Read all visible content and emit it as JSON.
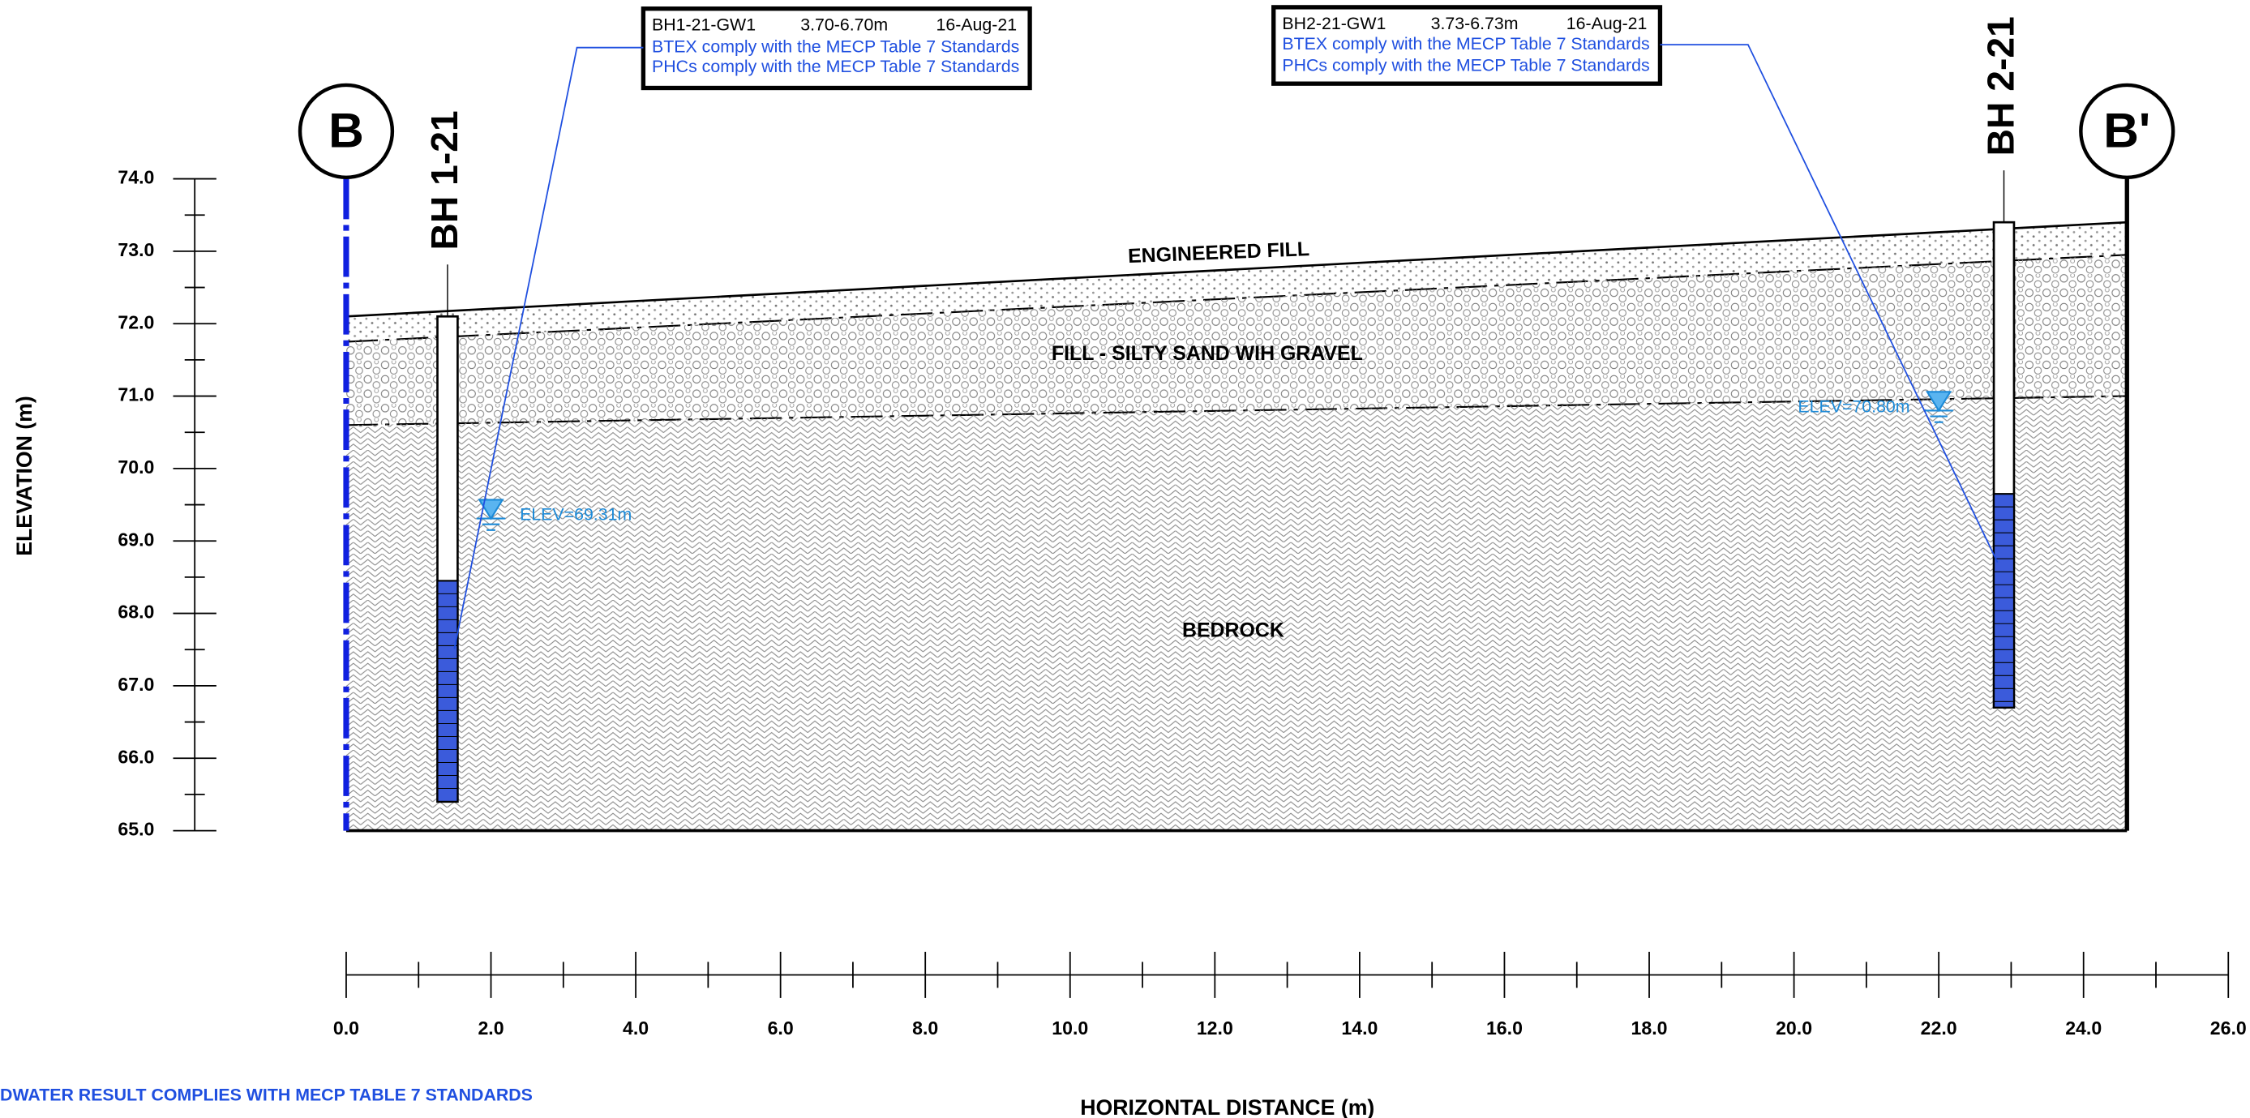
{
  "y_axis": {
    "label": "ELEVATION (m)",
    "ylim": [
      65,
      74
    ],
    "yticks": [
      {
        "value": 65,
        "label": "65.0"
      },
      {
        "value": 66,
        "label": "66.0"
      },
      {
        "value": 67,
        "label": "67.0"
      },
      {
        "value": 68,
        "label": "68.0"
      },
      {
        "value": 69,
        "label": "69.0"
      },
      {
        "value": 70,
        "label": "70.0"
      },
      {
        "value": 71,
        "label": "71.0"
      },
      {
        "value": 72,
        "label": "72.0"
      },
      {
        "value": 73,
        "label": "73.0"
      },
      {
        "value": 74,
        "label": "74.0"
      }
    ]
  },
  "x_axis": {
    "label": "HORIZONTAL DISTANCE (m)",
    "xlim": [
      0,
      26
    ],
    "xticks": [
      {
        "value": 0,
        "label": "0.0"
      },
      {
        "value": 2,
        "label": "2.0"
      },
      {
        "value": 4,
        "label": "4.0"
      },
      {
        "value": 6,
        "label": "6.0"
      },
      {
        "value": 8,
        "label": "8.0"
      },
      {
        "value": 10,
        "label": "10.0"
      },
      {
        "value": 12,
        "label": "12.0"
      },
      {
        "value": 14,
        "label": "14.0"
      },
      {
        "value": 16,
        "label": "16.0"
      },
      {
        "value": 18,
        "label": "18.0"
      },
      {
        "value": 20,
        "label": "20.0"
      },
      {
        "value": 22,
        "label": "22.0"
      },
      {
        "value": 24,
        "label": "24.0"
      },
      {
        "value": 26,
        "label": "26.0"
      }
    ]
  },
  "section_markers": [
    {
      "label": "B",
      "x": 0
    },
    {
      "label": "B'",
      "x": 24.6
    }
  ],
  "ground_elev": [
    72.1,
    73.4
  ],
  "layers": [
    {
      "name": "ENGINEERED FILL",
      "bottom_elev": [
        71.75,
        72.95
      ]
    },
    {
      "name": "FILL - SILTY SAND WIH GRAVEL",
      "bottom_elev": [
        70.6,
        71.0
      ]
    },
    {
      "name": "BEDROCK",
      "bottom_elev": [
        65,
        65
      ]
    }
  ],
  "boreholes": [
    {
      "label": "BH 1-21",
      "x": 1.4,
      "top_elev": 72.1,
      "bottom_elev": 65.4,
      "screen_top_elev": 68.45,
      "water": {
        "x": 2.0,
        "elev": 69.31,
        "label": "ELEV=69.31m"
      }
    },
    {
      "label": "BH 2-21",
      "x": 22.9,
      "top_elev": 73.4,
      "bottom_elev": 66.7,
      "screen_top_elev": 69.65,
      "water": {
        "x": 22.0,
        "elev": 70.8,
        "label": "ELEV=70.80m"
      }
    }
  ],
  "callouts": [
    {
      "sample": "BH1-21-GW1",
      "depth": "3.70-6.70m",
      "date": "16-Aug-21",
      "lines": [
        "BTEX comply with the MECP Table 7 Standards",
        "PHCs comply with the MECP Table 7 Standards"
      ]
    },
    {
      "sample": "BH2-21-GW1",
      "depth": "3.73-6.73m",
      "date": "16-Aug-21",
      "lines": [
        "BTEX comply with the MECP Table 7 Standards",
        "PHCs comply with the MECP Table 7 Standards"
      ]
    }
  ],
  "footer": "DWATER RESULT COMPLIES WITH MECP TABLE 7 STANDARDS"
}
